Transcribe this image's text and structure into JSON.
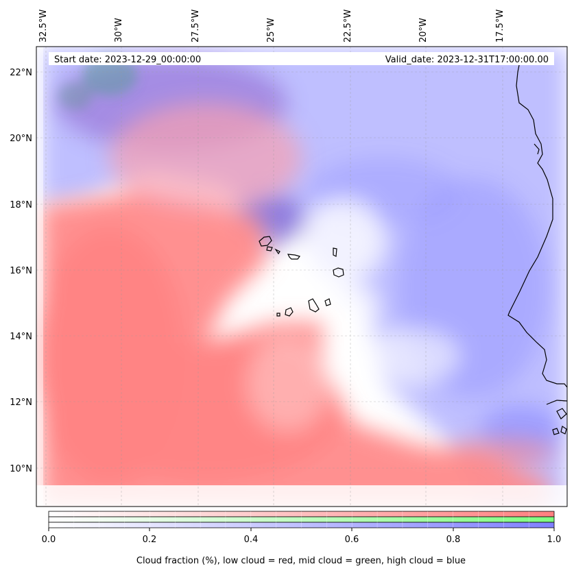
{
  "map": {
    "start_date": "Start date: 2023-12-29_00:00:00",
    "valid_date": "Valid_date: 2023-12-31T17:00:00.00",
    "lon_labels": [
      "32.5°W",
      "30°W",
      "27.5°W",
      "25°W",
      "22.5°W",
      "20°W",
      "17.5°W"
    ],
    "lat_labels": [
      "22°N",
      "20°N",
      "18°N",
      "16°N",
      "14°N",
      "12°N",
      "10°N"
    ],
    "colors": {
      "low_cloud": "#ff8080",
      "mid_cloud": "#80ff80",
      "high_cloud": "#8080ff",
      "coastline": "#000000"
    }
  },
  "colorbar": {
    "ticks": [
      "0.0",
      "0.2",
      "0.4",
      "0.6",
      "0.8",
      "1.0"
    ],
    "label": "Cloud fraction (%), low cloud = red, mid cloud = green, high cloud = blue"
  }
}
